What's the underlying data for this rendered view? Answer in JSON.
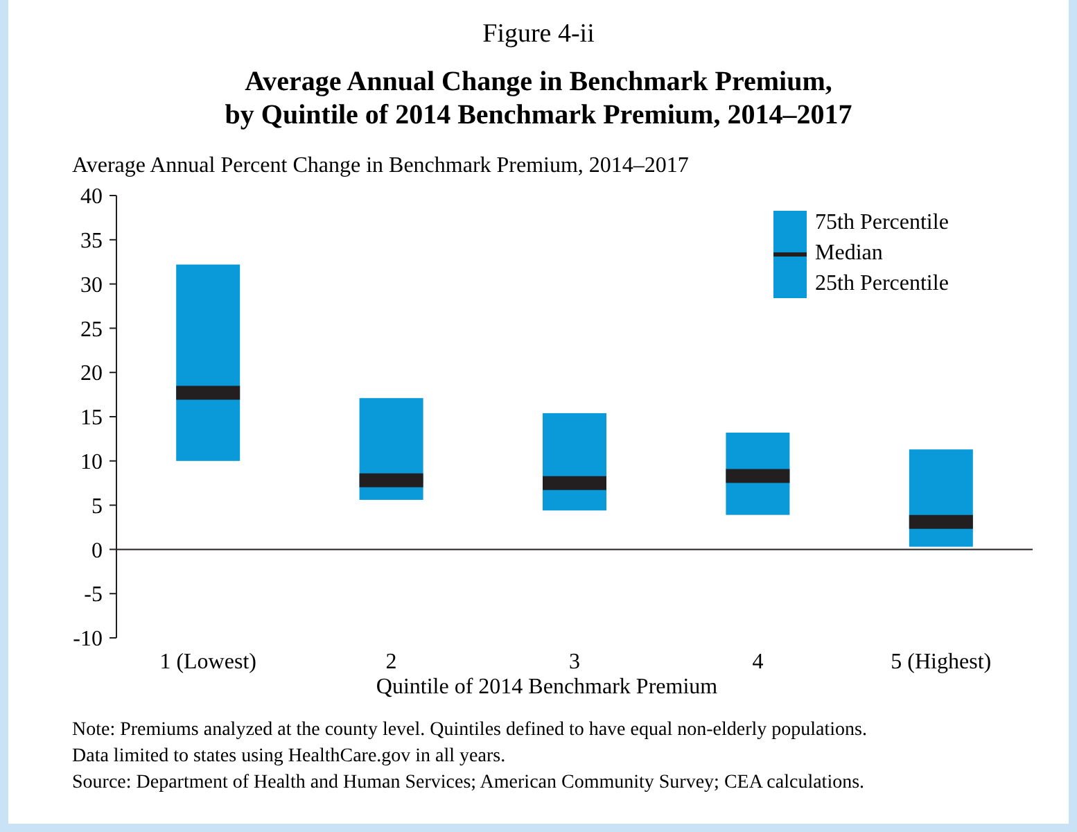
{
  "chart_data": {
    "type": "box",
    "title": "Figure 4-ii",
    "subtitle": "Average Annual Change in Benchmark Premium,\nby Quintile of 2014 Benchmark Premium, 2014–2017",
    "ylabel": "Average Annual Percent Change in Benchmark Premium, 2014–2017",
    "xlabel": "Quintile of 2014 Benchmark Premium",
    "categories": [
      "1 (Lowest)",
      "2",
      "3",
      "4",
      "5 (Highest)"
    ],
    "color": "#0a9ad9",
    "boxes": [
      {
        "low": 10.0,
        "q1": 10.0,
        "median": 17.7,
        "q3": 32.2,
        "high": 32.2
      },
      {
        "low": 5.6,
        "q1": 5.6,
        "median": 7.8,
        "q3": 17.1,
        "high": 17.1
      },
      {
        "low": 4.4,
        "q1": 4.4,
        "median": 7.5,
        "q3": 15.4,
        "high": 15.4
      },
      {
        "low": 3.9,
        "q1": 3.9,
        "median": 8.3,
        "q3": 13.2,
        "high": 13.2
      },
      {
        "low": 0.3,
        "q1": 0.3,
        "median": 3.1,
        "q3": 11.3,
        "high": 11.3
      }
    ],
    "ylim": [
      -10,
      40
    ],
    "yticks": [
      -10,
      -5,
      0,
      5,
      10,
      15,
      20,
      25,
      30,
      35,
      40
    ],
    "grid": false,
    "ref_lines": [
      {
        "axis": "y",
        "value": 0,
        "color": "#231f20"
      }
    ],
    "annotations": [
      "75th Percentile",
      "Median",
      "25th Percentile",
      "Note: Premiums analyzed at the county level. Quintiles defined to have equal non-elderly populations.",
      "Data limited to states using HealthCare.gov in all years.",
      "Source: Department of Health and Human Services; American Community Survey; CEA calculations."
    ]
  }
}
